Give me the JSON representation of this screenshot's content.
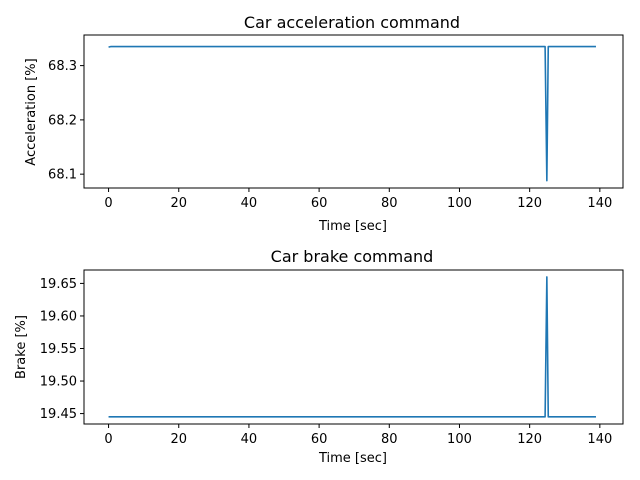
{
  "chart_data": [
    {
      "type": "line",
      "title": "Car acceleration command",
      "xlabel": "Time [sec]",
      "ylabel": "Acceleration [%]",
      "xlim": [
        -7,
        146.6
      ],
      "ylim": [
        68.0745,
        68.3564
      ],
      "xticks": [
        0,
        20,
        40,
        60,
        80,
        100,
        120,
        140
      ],
      "yticks": [
        68.1,
        68.2,
        68.3
      ],
      "ytick_labels": [
        "68.1",
        "68.2",
        "68.3"
      ],
      "grid": false,
      "series": [
        {
          "color": "#1f77b4",
          "x": [
            0,
            0.6,
            124.4,
            124.9,
            125.3,
            138.9
          ],
          "y": [
            68.334,
            68.335,
            68.335,
            68.088,
            68.335,
            68.335
          ]
        }
      ]
    },
    {
      "type": "line",
      "title": "Car brake command",
      "xlabel": "Time [sec]",
      "ylabel": "Brake [%]",
      "xlim": [
        -7,
        146.6
      ],
      "ylim": [
        19.434,
        19.6706
      ],
      "xticks": [
        0,
        20,
        40,
        60,
        80,
        100,
        120,
        140
      ],
      "yticks": [
        19.45,
        19.5,
        19.55,
        19.6,
        19.65
      ],
      "ytick_labels": [
        "19.45",
        "19.50",
        "19.55",
        "19.60",
        "19.65"
      ],
      "grid": false,
      "series": [
        {
          "color": "#1f77b4",
          "x": [
            0,
            124.4,
            124.9,
            125.3,
            138.9
          ],
          "y": [
            19.445,
            19.445,
            19.66,
            19.445,
            19.445
          ]
        }
      ]
    }
  ]
}
